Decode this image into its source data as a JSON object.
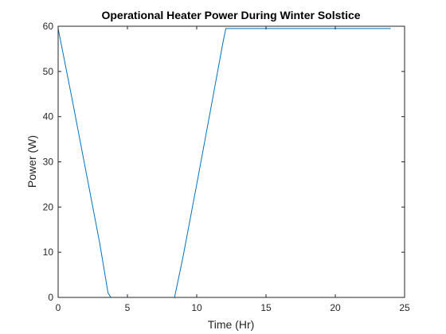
{
  "chart_data": {
    "type": "line",
    "title": "Operational Heater Power During Winter Solstice",
    "xlabel": "Time (Hr)",
    "ylabel": "Power (W)",
    "xlim": [
      0,
      25
    ],
    "ylim": [
      0,
      60
    ],
    "xticks": [
      0,
      5,
      10,
      15,
      20,
      25
    ],
    "yticks": [
      0,
      10,
      20,
      30,
      40,
      50,
      60
    ],
    "grid": false,
    "series": [
      {
        "name": "",
        "color": "#0072BD",
        "x": [
          0,
          1,
          2,
          3,
          3.6,
          3.8,
          8.4,
          9,
          10,
          11,
          11.9,
          12.1,
          24
        ],
        "y": [
          59.5,
          44,
          28,
          12,
          1,
          0,
          0,
          8.8,
          25,
          41.5,
          56.5,
          59.5,
          59.5
        ]
      }
    ]
  }
}
